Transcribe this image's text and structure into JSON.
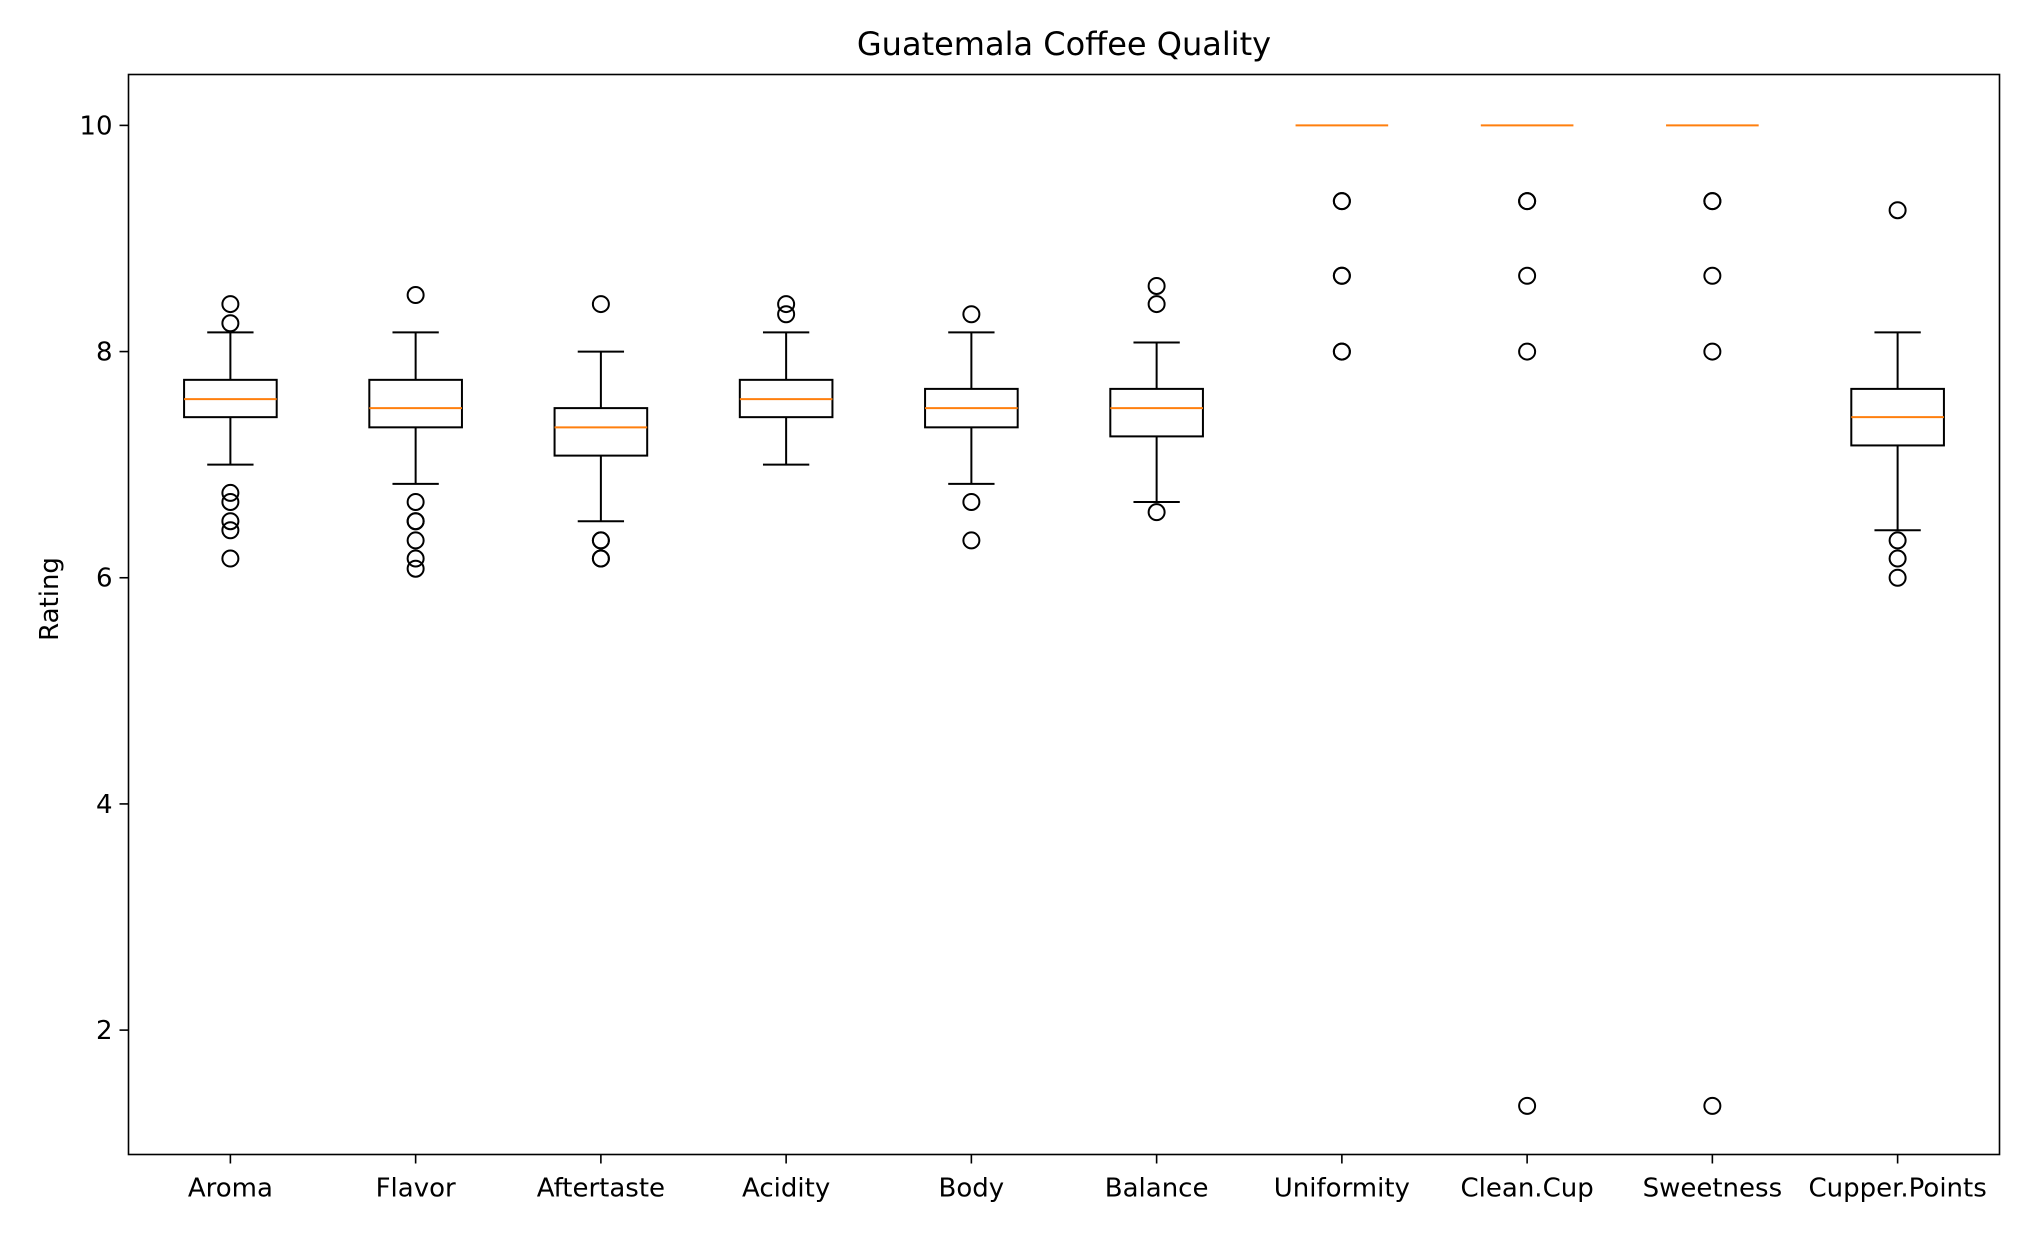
{
  "chart_data": {
    "type": "boxplot",
    "title": "Guatemala Coffee Quality",
    "xlabel": "",
    "ylabel": "Rating",
    "ylim": [
      0.9,
      10.45
    ],
    "yticks": [
      2,
      4,
      6,
      8,
      10
    ],
    "grid": false,
    "colors": {
      "box": "#000000",
      "median": "#ff7f0e",
      "flier": "#000000"
    },
    "categories": [
      "Aroma",
      "Flavor",
      "Aftertaste",
      "Acidity",
      "Body",
      "Balance",
      "Uniformity",
      "Clean.Cup",
      "Sweetness",
      "Cupper.Points"
    ],
    "boxes": [
      {
        "label": "Aroma",
        "whislo": 7.0,
        "q1": 7.42,
        "med": 7.58,
        "q3": 7.75,
        "whishi": 8.17,
        "fliers": [
          8.42,
          8.25,
          6.75,
          6.67,
          6.5,
          6.42,
          6.17
        ]
      },
      {
        "label": "Flavor",
        "whislo": 6.83,
        "q1": 7.33,
        "med": 7.5,
        "q3": 7.75,
        "whishi": 8.17,
        "fliers": [
          8.5,
          6.67,
          6.5,
          6.5,
          6.33,
          6.17,
          6.08
        ]
      },
      {
        "label": "Aftertaste",
        "whislo": 6.5,
        "q1": 7.08,
        "med": 7.33,
        "q3": 7.5,
        "whishi": 8.0,
        "fliers": [
          8.42,
          6.33,
          6.33,
          6.17,
          6.17
        ]
      },
      {
        "label": "Acidity",
        "whislo": 7.0,
        "q1": 7.42,
        "med": 7.58,
        "q3": 7.75,
        "whishi": 8.17,
        "fliers": [
          8.42,
          8.33
        ]
      },
      {
        "label": "Body",
        "whislo": 6.83,
        "q1": 7.33,
        "med": 7.5,
        "q3": 7.67,
        "whishi": 8.17,
        "fliers": [
          8.33,
          6.67,
          6.33
        ]
      },
      {
        "label": "Balance",
        "whislo": 6.67,
        "q1": 7.25,
        "med": 7.5,
        "q3": 7.67,
        "whishi": 8.08,
        "fliers": [
          8.58,
          8.42,
          6.58
        ]
      },
      {
        "label": "Uniformity",
        "whislo": 10.0,
        "q1": 10.0,
        "med": 10.0,
        "q3": 10.0,
        "whishi": 10.0,
        "fliers": [
          9.33,
          9.33,
          8.67,
          8.67,
          8.0,
          8.0
        ]
      },
      {
        "label": "Clean.Cup",
        "whislo": 10.0,
        "q1": 10.0,
        "med": 10.0,
        "q3": 10.0,
        "whishi": 10.0,
        "fliers": [
          9.33,
          9.33,
          8.67,
          8.0,
          1.33
        ]
      },
      {
        "label": "Sweetness",
        "whislo": 10.0,
        "q1": 10.0,
        "med": 10.0,
        "q3": 10.0,
        "whishi": 10.0,
        "fliers": [
          9.33,
          9.33,
          8.67,
          8.0,
          1.33
        ]
      },
      {
        "label": "Cupper.Points",
        "whislo": 6.42,
        "q1": 7.17,
        "med": 7.42,
        "q3": 7.67,
        "whishi": 8.17,
        "fliers": [
          9.25,
          6.33,
          6.17,
          6.0
        ]
      }
    ]
  }
}
